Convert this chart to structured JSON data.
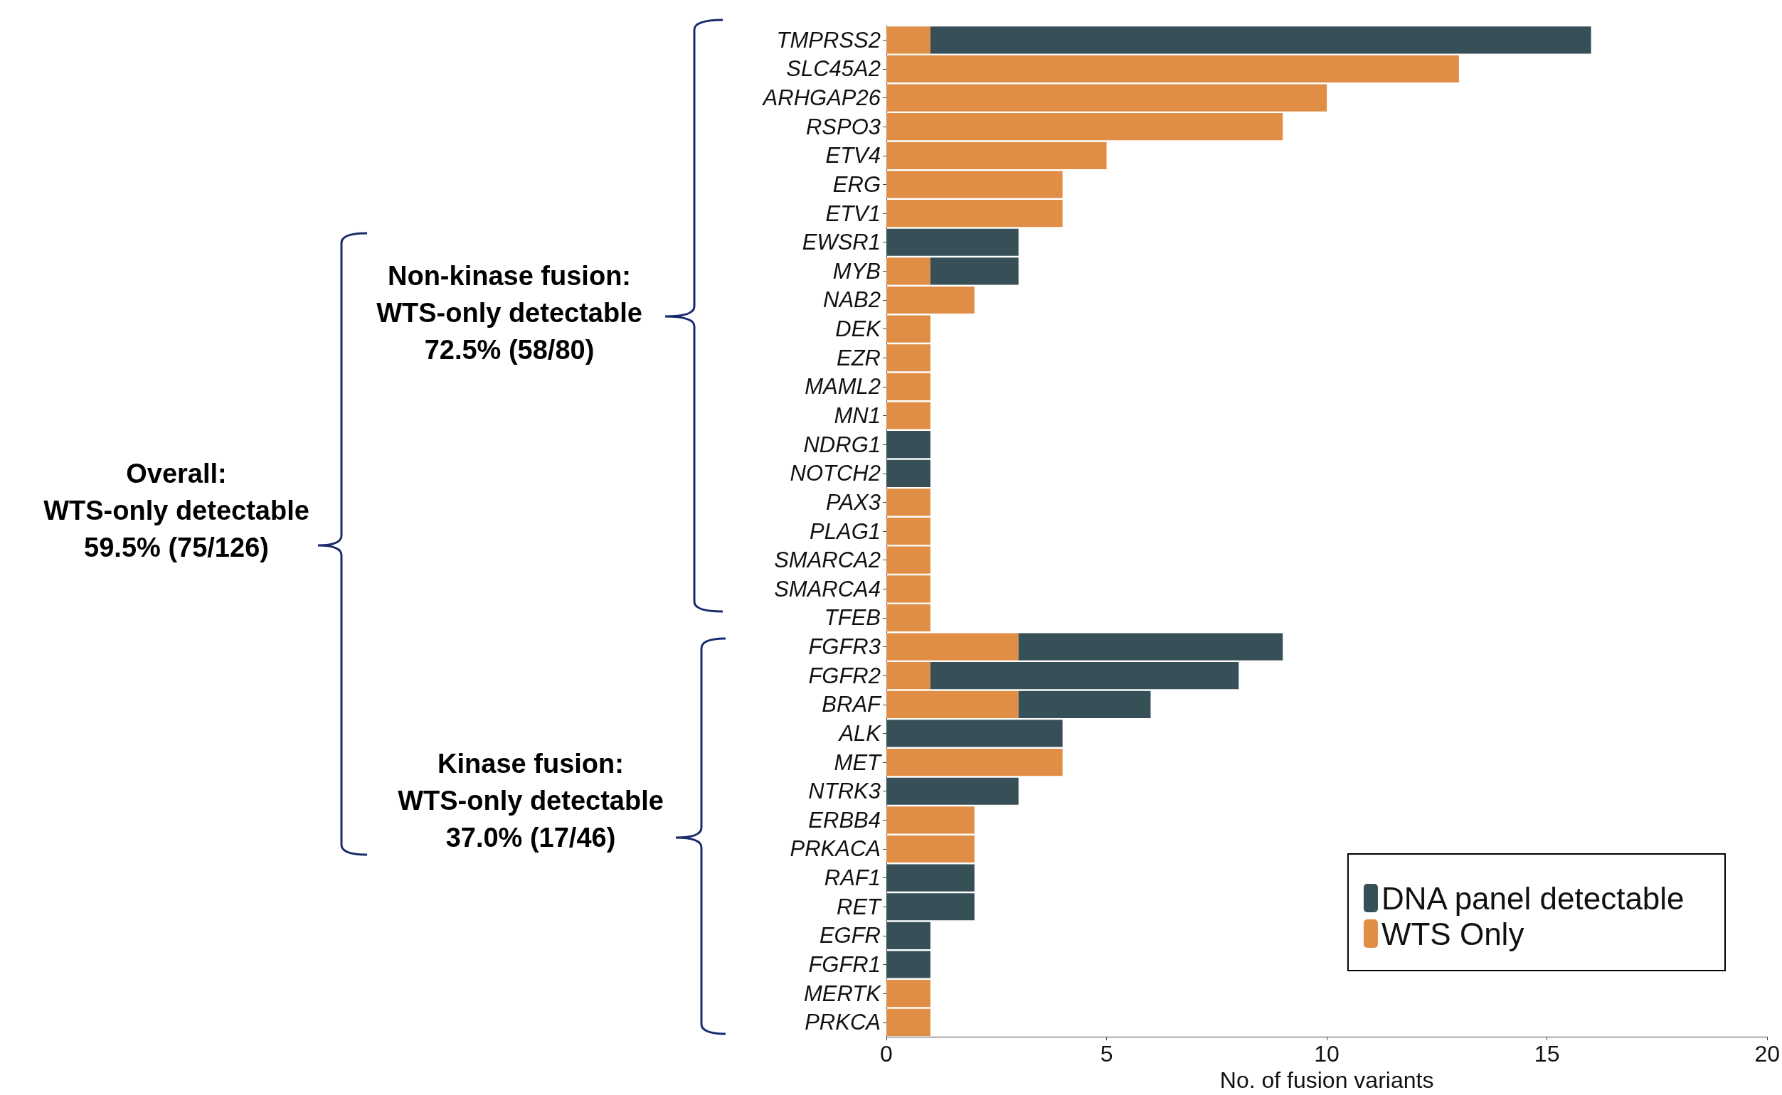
{
  "chart_data": {
    "type": "bar",
    "orientation": "horizontal",
    "stacked": true,
    "categories": [
      "TMPRSS2",
      "SLC45A2",
      "ARHGAP26",
      "RSPO3",
      "ETV4",
      "ERG",
      "ETV1",
      "EWSR1",
      "MYB",
      "NAB2",
      "DEK",
      "EZR",
      "MAML2",
      "MN1",
      "NDRG1",
      "NOTCH2",
      "PAX3",
      "PLAG1",
      "SMARCA2",
      "SMARCA4",
      "TFEB",
      "FGFR3",
      "FGFR2",
      "BRAF",
      "ALK",
      "MET",
      "NTRK3",
      "ERBB4",
      "PRKACA",
      "RAF1",
      "RET",
      "EGFR",
      "FGFR1",
      "MERTK",
      "PRKCA"
    ],
    "series": [
      {
        "name": "WTS Only",
        "color": "#e08e45",
        "values": [
          1,
          13,
          10,
          9,
          5,
          4,
          4,
          0,
          1,
          2,
          1,
          1,
          1,
          1,
          0,
          0,
          1,
          1,
          1,
          1,
          1,
          3,
          1,
          3,
          0,
          4,
          0,
          2,
          2,
          0,
          0,
          0,
          0,
          1,
          1
        ]
      },
      {
        "name": "DNA panel detectable",
        "color": "#374f56",
        "values": [
          15,
          0,
          0,
          0,
          0,
          0,
          0,
          3,
          2,
          0,
          0,
          0,
          0,
          0,
          1,
          1,
          0,
          0,
          0,
          0,
          0,
          6,
          7,
          3,
          4,
          0,
          3,
          0,
          0,
          2,
          2,
          1,
          1,
          0,
          0
        ]
      }
    ],
    "xlabel": "No. of fusion variants",
    "xlim": [
      0,
      20
    ],
    "xticks": [
      0,
      5,
      10,
      15,
      20
    ],
    "grid": false,
    "legend": "bottom right",
    "annotations": [
      "Non-kinase fusion:\nWTS-only detectable\n72.5% (58/80)",
      "Overall:\nWTS-only detectable\n59.5% (75/126)",
      "Kinase fusion:\nWTS-only detectable\n37.0% (17/46)"
    ]
  }
}
